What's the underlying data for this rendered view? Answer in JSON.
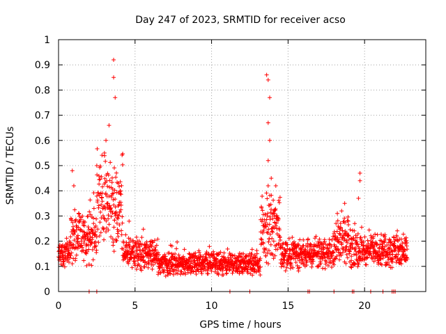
{
  "chart_data": {
    "type": "scatter",
    "title": "Day 247 of 2023, SRMTID for receiver acso",
    "xlabel": "GPS time / hours",
    "ylabel": "SRMTID / TECUs",
    "xlim": [
      0,
      24
    ],
    "ylim": [
      0,
      1
    ],
    "x_ticks": [
      "0",
      "5",
      "10",
      "15",
      "20"
    ],
    "y_ticks": [
      "0",
      "0.1",
      "0.2",
      "0.3",
      "0.4",
      "0.5",
      "0.6",
      "0.7",
      "0.8",
      "0.9",
      "1"
    ],
    "grid": true,
    "marker": "plus",
    "color": "#ff0000",
    "series": [
      {
        "name": "SRMTID",
        "segments": [
          {
            "x_start": 0.0,
            "x_end": 0.8,
            "base": 0.15,
            "spread": 0.06
          },
          {
            "x_start": 0.8,
            "x_end": 2.5,
            "base": 0.22,
            "spread": 0.12
          },
          {
            "x_start": 2.5,
            "x_end": 4.2,
            "base": 0.35,
            "spread": 0.2
          },
          {
            "x_start": 4.2,
            "x_end": 6.5,
            "base": 0.15,
            "spread": 0.07
          },
          {
            "x_start": 6.5,
            "x_end": 13.2,
            "base": 0.11,
            "spread": 0.05
          },
          {
            "x_start": 13.2,
            "x_end": 14.5,
            "base": 0.25,
            "spread": 0.15
          },
          {
            "x_start": 14.5,
            "x_end": 18.0,
            "base": 0.15,
            "spread": 0.07
          },
          {
            "x_start": 18.0,
            "x_end": 19.0,
            "base": 0.2,
            "spread": 0.1
          },
          {
            "x_start": 19.0,
            "x_end": 22.8,
            "base": 0.16,
            "spread": 0.07
          }
        ],
        "peaks": [
          {
            "x": 3.6,
            "y": 0.92
          },
          {
            "x": 3.6,
            "y": 0.85
          },
          {
            "x": 3.7,
            "y": 0.77
          },
          {
            "x": 3.3,
            "y": 0.66
          },
          {
            "x": 3.1,
            "y": 0.6
          },
          {
            "x": 3.0,
            "y": 0.55
          },
          {
            "x": 3.9,
            "y": 0.43
          },
          {
            "x": 2.5,
            "y": 0.5
          },
          {
            "x": 0.9,
            "y": 0.48
          },
          {
            "x": 1.0,
            "y": 0.42
          },
          {
            "x": 13.6,
            "y": 0.86
          },
          {
            "x": 13.7,
            "y": 0.84
          },
          {
            "x": 13.8,
            "y": 0.77
          },
          {
            "x": 13.7,
            "y": 0.67
          },
          {
            "x": 13.8,
            "y": 0.6
          },
          {
            "x": 13.7,
            "y": 0.52
          },
          {
            "x": 13.9,
            "y": 0.45
          },
          {
            "x": 14.2,
            "y": 0.42
          },
          {
            "x": 19.7,
            "y": 0.47
          },
          {
            "x": 19.7,
            "y": 0.44
          },
          {
            "x": 19.6,
            "y": 0.37
          },
          {
            "x": 18.7,
            "y": 0.35
          },
          {
            "x": 18.5,
            "y": 0.32
          }
        ],
        "zeros": [
          2.0,
          2.5,
          11.2,
          12.5,
          16.3,
          16.4,
          18.0,
          19.2,
          19.3,
          20.4,
          21.2,
          21.8,
          21.9,
          22.0
        ]
      }
    ]
  }
}
